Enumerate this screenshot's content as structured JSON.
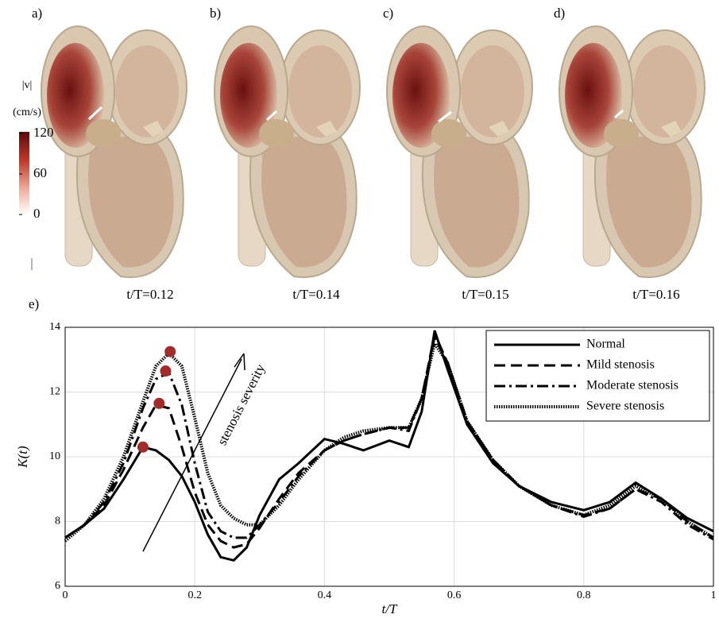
{
  "panels": [
    {
      "label": "a)",
      "caption": "t/T=0.12"
    },
    {
      "label": "b)",
      "caption": "t/T=0.14"
    },
    {
      "label": "c)",
      "caption": "t/T=0.15"
    },
    {
      "label": "d)",
      "caption": "t/T=0.16"
    }
  ],
  "colorbar": {
    "title": "|v|",
    "unit": "(cm/s)",
    "ticks": [
      0,
      60,
      120
    ],
    "lim": [
      0,
      120
    ]
  },
  "chart_data": {
    "type": "line",
    "panel_label": "e)",
    "x_label": "t/T",
    "y_label": "K(t)",
    "annotation": "stenosis severity",
    "xlim": [
      0,
      1
    ],
    "ylim": [
      6,
      14
    ],
    "xticks": [
      0,
      0.2,
      0.4,
      0.6,
      0.8,
      1
    ],
    "yticks": [
      6,
      8,
      10,
      12,
      14
    ],
    "grid": true,
    "legend": "upper right",
    "x": [
      0,
      0.03,
      0.06,
      0.09,
      0.12,
      0.14,
      0.16,
      0.18,
      0.2,
      0.22,
      0.24,
      0.26,
      0.28,
      0.3,
      0.33,
      0.36,
      0.4,
      0.43,
      0.46,
      0.5,
      0.53,
      0.55,
      0.57,
      0.59,
      0.62,
      0.66,
      0.7,
      0.75,
      0.8,
      0.84,
      0.88,
      0.92,
      0.96,
      1.0
    ],
    "series": [
      {
        "name": "Normal",
        "color": "#000000",
        "style": "solid",
        "values": [
          7.5,
          7.9,
          8.4,
          9.3,
          10.3,
          10.2,
          9.9,
          9.4,
          8.6,
          7.6,
          6.9,
          6.8,
          7.2,
          8.2,
          9.3,
          9.8,
          10.55,
          10.4,
          10.2,
          10.5,
          10.3,
          11.4,
          13.9,
          12.7,
          11.0,
          9.8,
          9.1,
          8.6,
          8.35,
          8.6,
          9.2,
          8.7,
          8.1,
          7.7
        ]
      },
      {
        "name": "Mild stenosis",
        "color": "#000000",
        "style": "dashed",
        "values": [
          7.5,
          7.9,
          8.5,
          9.6,
          10.9,
          11.6,
          11.5,
          10.3,
          8.9,
          7.9,
          7.4,
          7.2,
          7.3,
          7.8,
          8.7,
          9.5,
          10.2,
          10.5,
          10.7,
          10.9,
          10.9,
          11.8,
          13.8,
          12.9,
          11.1,
          9.9,
          9.1,
          8.5,
          8.2,
          8.4,
          9.0,
          8.7,
          8.0,
          7.5
        ]
      },
      {
        "name": "Moderate stenosis",
        "color": "#000000",
        "style": "dashdot",
        "values": [
          7.5,
          7.9,
          8.6,
          9.8,
          11.5,
          12.4,
          12.6,
          11.6,
          9.8,
          8.3,
          7.7,
          7.5,
          7.5,
          7.9,
          8.6,
          9.4,
          10.2,
          10.5,
          10.7,
          10.9,
          10.8,
          11.8,
          13.7,
          12.9,
          11.1,
          9.9,
          9.1,
          8.5,
          8.15,
          8.4,
          9.0,
          8.6,
          7.9,
          7.45
        ]
      },
      {
        "name": "Severe stenosis",
        "color": "#000000",
        "style": "dotted",
        "values": [
          7.4,
          7.9,
          8.7,
          10.0,
          11.7,
          12.8,
          13.2,
          12.8,
          11.2,
          9.5,
          8.5,
          8.1,
          7.9,
          7.9,
          8.5,
          9.3,
          10.2,
          10.6,
          10.8,
          10.9,
          10.9,
          11.8,
          13.5,
          12.9,
          11.1,
          9.9,
          9.1,
          8.5,
          8.2,
          8.5,
          9.1,
          8.7,
          8.0,
          7.5
        ]
      }
    ],
    "peaks": {
      "color": "#a52a2a",
      "x": [
        0.12,
        0.145,
        0.155,
        0.162
      ],
      "values": [
        10.3,
        11.65,
        12.65,
        13.25
      ]
    }
  }
}
